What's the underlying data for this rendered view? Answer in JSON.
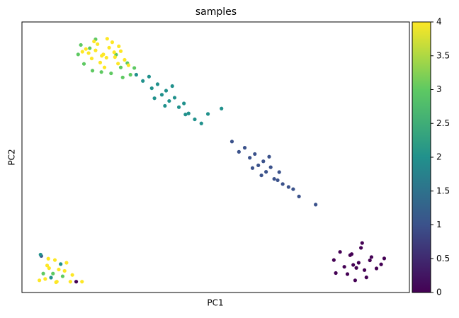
{
  "chart_data": {
    "type": "scatter",
    "title": "samples",
    "xlabel": "PC1",
    "ylabel": "PC2",
    "xlim": [
      0,
      100
    ],
    "ylim": [
      0,
      100
    ],
    "x": [
      80.5,
      83.2,
      85.1,
      86.9,
      88.4,
      90.2,
      92.7,
      84.0,
      87.5,
      89.8,
      82.1,
      86.0,
      91.5,
      85.5,
      88.9,
      84.7,
      87.8,
      93.5,
      81.0,
      86.3,
      54.2,
      56.0,
      57.5,
      58.8,
      60.1,
      61.0,
      62.3,
      63.0,
      64.2,
      65.1,
      66.4,
      67.3,
      68.8,
      70.0,
      71.5,
      59.5,
      63.8,
      66.0,
      61.8,
      75.8,
      29.5,
      31.2,
      32.8,
      33.5,
      35.0,
      36.1,
      37.2,
      38.0,
      39.4,
      40.5,
      41.8,
      43.0,
      44.6,
      46.3,
      34.2,
      38.8,
      42.2,
      36.9,
      48.0,
      51.5,
      14.5,
      16.0,
      18.2,
      20.5,
      23.0,
      25.5,
      27.2,
      28.0,
      26.0,
      17.5,
      15.2,
      24.3,
      29.0,
      19.0,
      16.5,
      18.0,
      19.5,
      21.0,
      22.5,
      24.0,
      25.5,
      17.2,
      20.2,
      23.3,
      26.5,
      19.0,
      21.8,
      24.8,
      18.6,
      22.0,
      20.6,
      23.8,
      27.5,
      15.6,
      21.3,
      25.0,
      4.5,
      5.5,
      6.5,
      7.5,
      8.5,
      9.5,
      10.5,
      11.5,
      12.5,
      5.0,
      6.0,
      7.0,
      8.0,
      9.0,
      10.0,
      11.0,
      13.0,
      6.8,
      8.8,
      15.5,
      14.0,
      4.8
    ],
    "y": [
      12.0,
      9.5,
      14.2,
      11.0,
      8.3,
      13.1,
      10.4,
      6.8,
      16.5,
      11.9,
      15.0,
      4.5,
      8.9,
      10.2,
      5.6,
      13.8,
      18.3,
      12.6,
      7.2,
      9.1,
      55.8,
      52.0,
      53.5,
      49.8,
      51.2,
      47.0,
      48.5,
      44.6,
      46.3,
      42.0,
      44.5,
      40.1,
      39.0,
      38.2,
      35.5,
      46.0,
      50.2,
      41.5,
      43.3,
      32.5,
      80.5,
      78.2,
      79.8,
      75.5,
      77.0,
      73.1,
      74.6,
      70.8,
      72.0,
      68.5,
      69.9,
      66.2,
      64.0,
      62.5,
      71.8,
      76.3,
      65.8,
      69.0,
      66.0,
      68.0,
      88.0,
      84.5,
      82.0,
      81.5,
      81.0,
      83.2,
      84.8,
      80.5,
      79.5,
      90.3,
      91.5,
      87.9,
      83.0,
      93.6,
      90.0,
      86.5,
      91.8,
      88.0,
      90.5,
      87.0,
      89.2,
      88.5,
      85.0,
      92.5,
      86.0,
      89.5,
      86.8,
      84.6,
      92.8,
      93.8,
      87.5,
      88.8,
      84.0,
      89.0,
      83.2,
      91.0,
      4.5,
      7.0,
      10.0,
      5.5,
      12.0,
      8.5,
      6.0,
      11.0,
      4.0,
      13.5,
      5.0,
      9.0,
      7.0,
      4.0,
      10.5,
      8.0,
      6.5,
      12.5,
      3.8,
      4.0,
      4.0,
      14.0
    ],
    "c": [
      0,
      0,
      0,
      0,
      0,
      0,
      0,
      0,
      0,
      0,
      0,
      0,
      0,
      0,
      0,
      0,
      0,
      0,
      0,
      0,
      1,
      1,
      1,
      1,
      1,
      1,
      1,
      1,
      1,
      1,
      1,
      1,
      1,
      1,
      1,
      1,
      1,
      1,
      1,
      1,
      2,
      2,
      2,
      2,
      2,
      2,
      2,
      2,
      2,
      2,
      2,
      2,
      2,
      2,
      2,
      2,
      2,
      2,
      2,
      2,
      3,
      3,
      3,
      3,
      3,
      3,
      3,
      3,
      3,
      3,
      3,
      3,
      3,
      3,
      4,
      4,
      4,
      4,
      4,
      4,
      4,
      4,
      4,
      4,
      4,
      4,
      4,
      4,
      4,
      4,
      4,
      4,
      4,
      4,
      4,
      4,
      4,
      3,
      4,
      2,
      4,
      4,
      3,
      4,
      4,
      1,
      4,
      4,
      3,
      4,
      2,
      4,
      4,
      4,
      4,
      4,
      0,
      2
    ],
    "colormap": [
      "#440154",
      "#3b528b",
      "#21918c",
      "#5ec962",
      "#fde725"
    ],
    "clim": [
      0,
      4
    ],
    "cticks": [
      0,
      0.5,
      1,
      1.5,
      2,
      2.5,
      3,
      3.5,
      4
    ]
  }
}
